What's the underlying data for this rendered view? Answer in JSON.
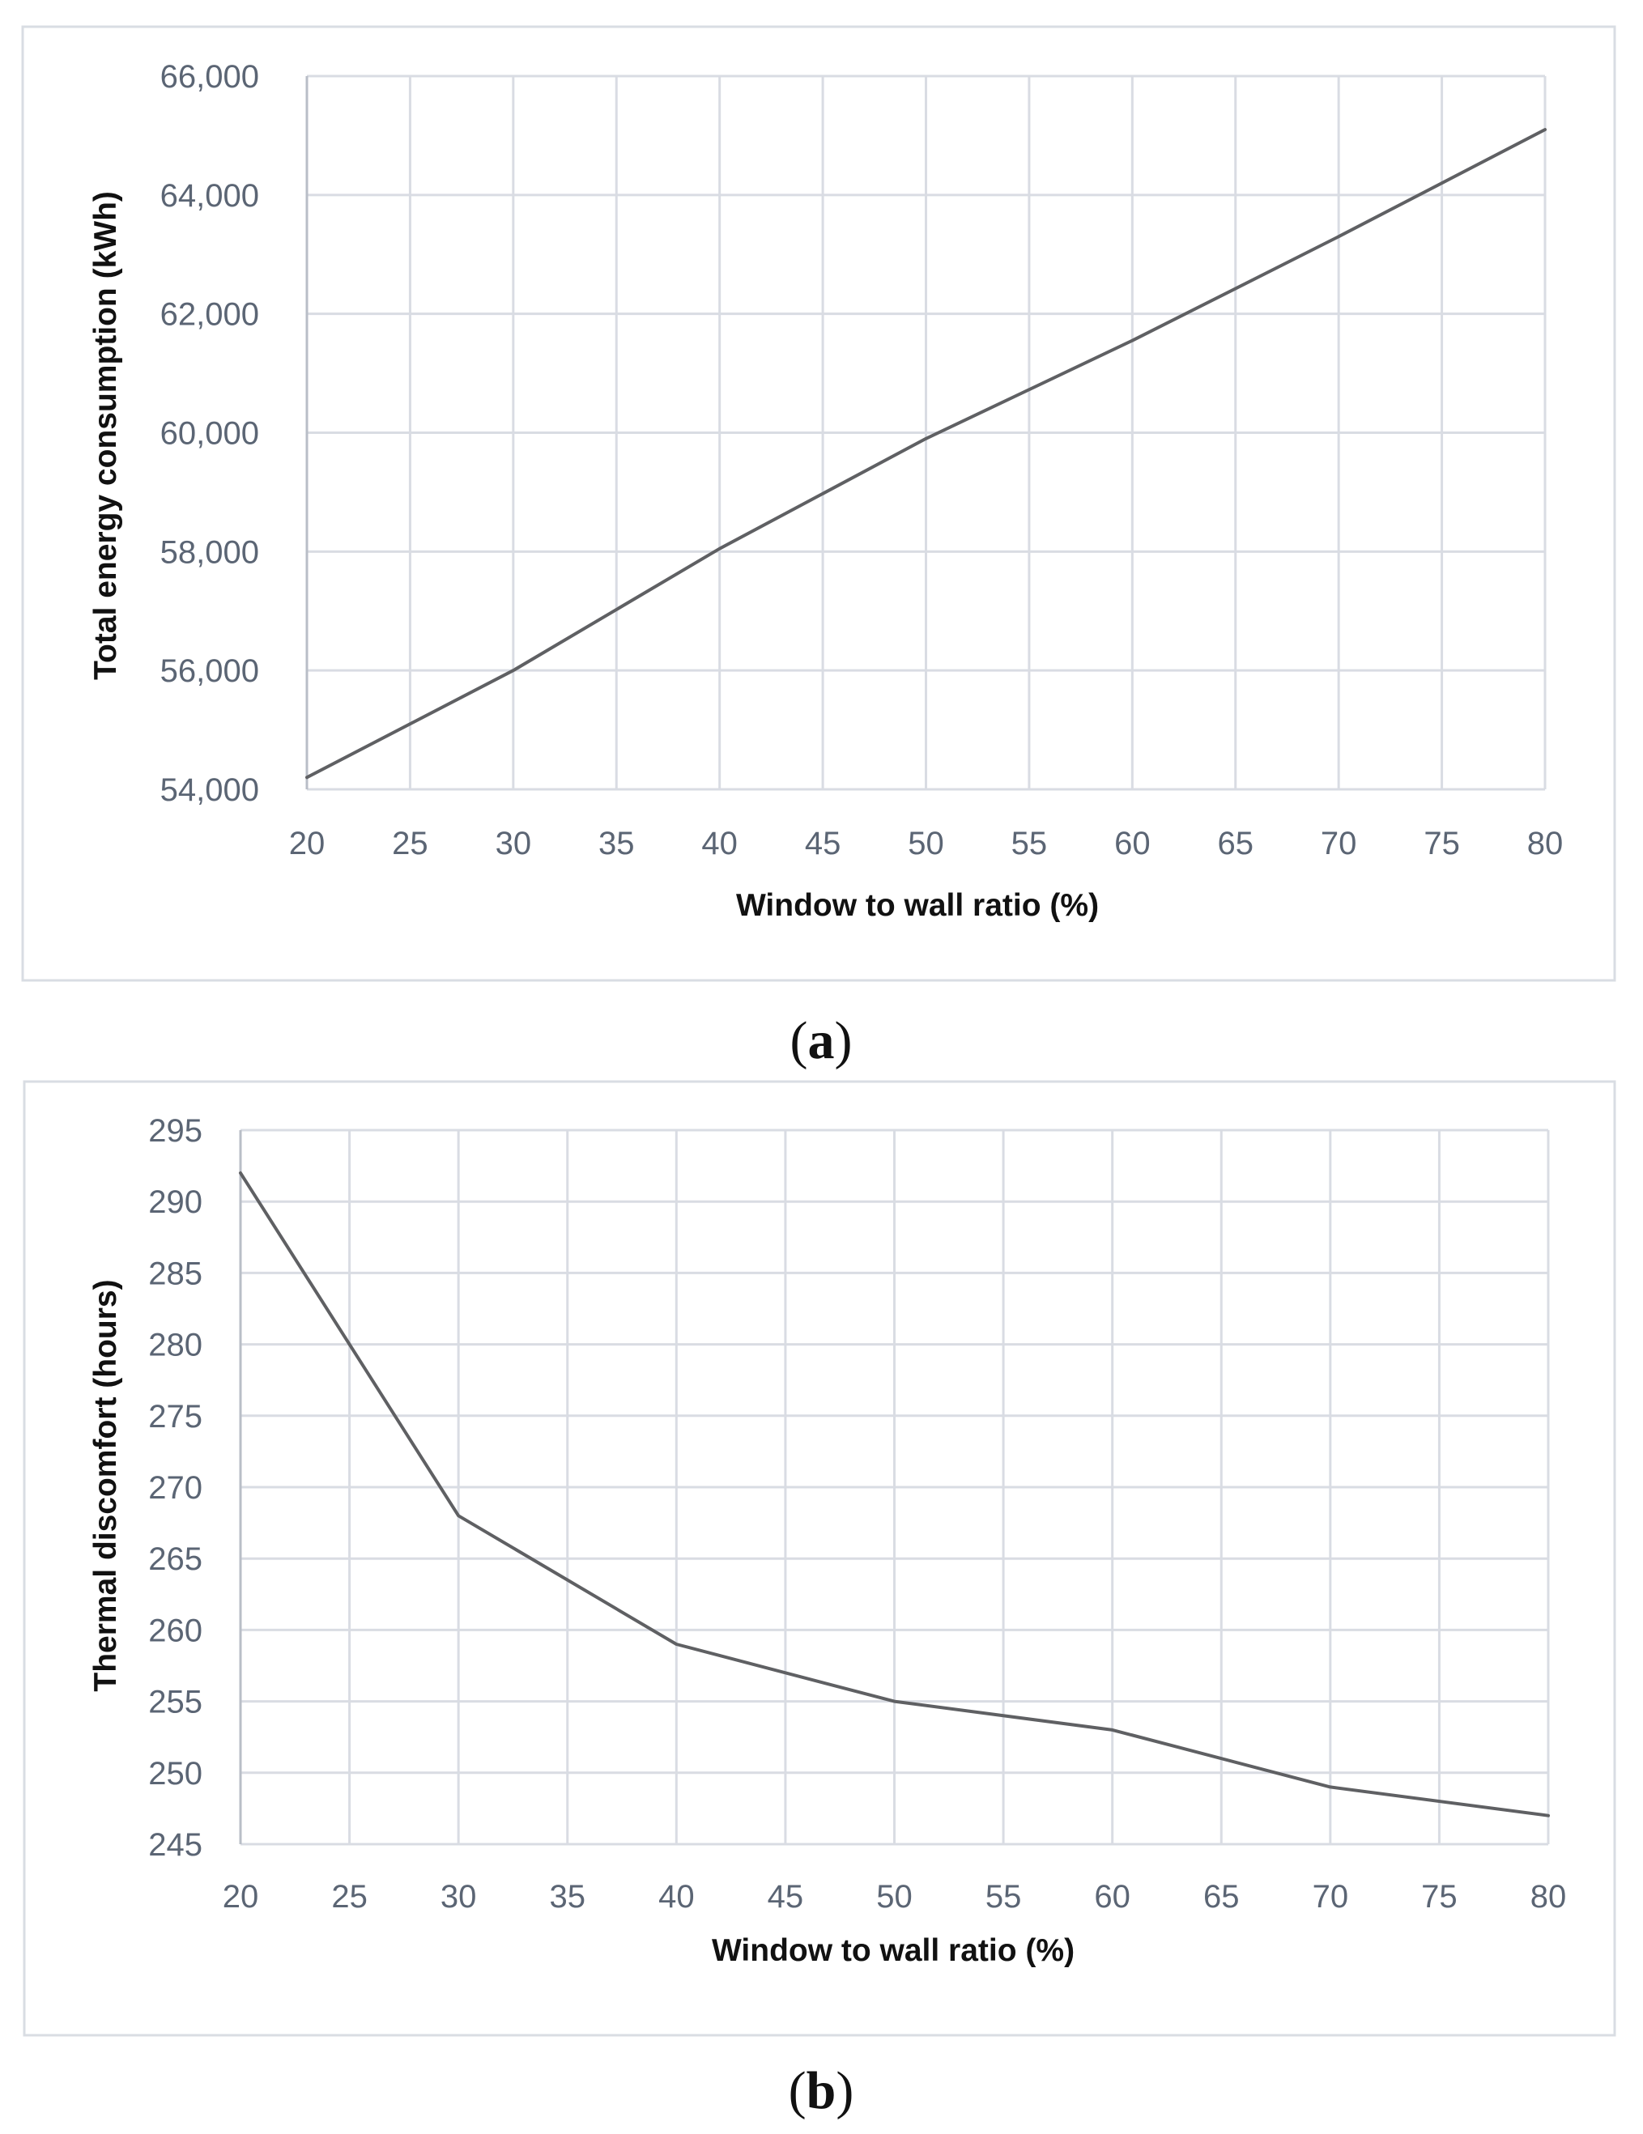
{
  "chart_data": [
    {
      "id": "a",
      "type": "line",
      "caption_letter": "a",
      "title": "",
      "xlabel": "Window to wall ratio (%)",
      "ylabel": "Total energy consumption (kWh)",
      "xlim": [
        20,
        80
      ],
      "ylim": [
        54000,
        66000
      ],
      "xticks": [
        20,
        25,
        30,
        35,
        40,
        45,
        50,
        55,
        60,
        65,
        70,
        75,
        80
      ],
      "yticks": [
        54000,
        56000,
        58000,
        60000,
        62000,
        64000,
        66000
      ],
      "ytick_labels": [
        "54,000",
        "56,000",
        "58,000",
        "60,000",
        "62,000",
        "64,000",
        "66,000"
      ],
      "grid": true,
      "legend": "none",
      "series": [
        {
          "name": "Total energy consumption",
          "color": "#5f6063",
          "x": [
            20,
            30,
            40,
            50,
            60,
            70,
            80
          ],
          "y": [
            54200,
            56000,
            58050,
            59900,
            61550,
            63300,
            65100
          ]
        }
      ]
    },
    {
      "id": "b",
      "type": "line",
      "caption_letter": "b",
      "title": "",
      "xlabel": "Window to wall ratio (%)",
      "ylabel": "Thermal discomfort (hours)",
      "xlim": [
        20,
        80
      ],
      "ylim": [
        245,
        295
      ],
      "xticks": [
        20,
        25,
        30,
        35,
        40,
        45,
        50,
        55,
        60,
        65,
        70,
        75,
        80
      ],
      "yticks": [
        245,
        250,
        255,
        260,
        265,
        270,
        275,
        280,
        285,
        290,
        295
      ],
      "ytick_labels": [
        "245",
        "250",
        "255",
        "260",
        "265",
        "270",
        "275",
        "280",
        "285",
        "290",
        "295"
      ],
      "grid": true,
      "legend": "none",
      "series": [
        {
          "name": "Thermal discomfort",
          "color": "#5f6063",
          "x": [
            20,
            30,
            40,
            50,
            60,
            70,
            80
          ],
          "y": [
            292,
            268,
            259,
            255,
            253,
            249,
            247
          ]
        }
      ]
    }
  ]
}
